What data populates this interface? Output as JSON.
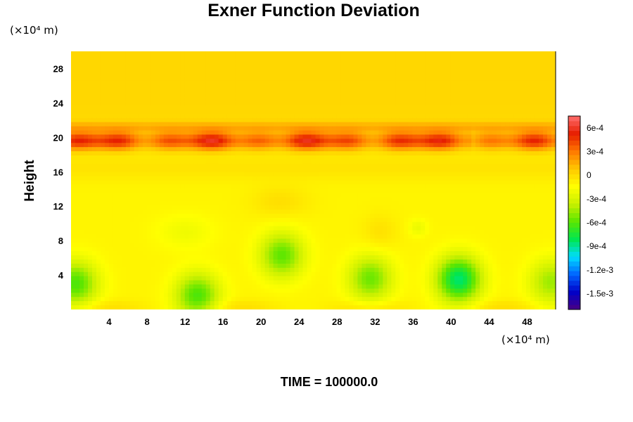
{
  "chart_data": {
    "type": "heatmap",
    "title": "Exner Function Deviation",
    "ylabel": "Height",
    "xlabel": "",
    "y_unit": "(×10⁴ m)",
    "x_unit": "(×10⁴ m)",
    "x_ticks": [
      "4",
      "8",
      "12",
      "16",
      "20",
      "24",
      "28",
      "32",
      "36",
      "40",
      "44",
      "48"
    ],
    "y_ticks": [
      "4",
      "8",
      "12",
      "16",
      "20",
      "24",
      "28"
    ],
    "xlim": [
      0,
      51
    ],
    "ylim": [
      0,
      30
    ],
    "colorbar": {
      "tick_labels": [
        "6e-4",
        "3e-4",
        "0",
        "-3e-4",
        "-6e-4",
        "-9e-4",
        "-1.2e-3",
        "-1.5e-3"
      ],
      "tick_values": [
        0.0006,
        0.0003,
        0,
        -0.0003,
        -0.0006,
        -0.0009,
        -0.0012,
        -0.0015
      ],
      "range": [
        -0.0017,
        0.00075
      ],
      "placement": "right",
      "colors": [
        "#4b0082",
        "#0000c8",
        "#0064ff",
        "#00dcff",
        "#00e650",
        "#5ae600",
        "#c8f000",
        "#ffff00",
        "#ffc800",
        "#ff7800",
        "#e61e00",
        "#ff6e6e"
      ]
    },
    "field": {
      "background_value": -0.0001,
      "upper_value": 2e-05,
      "band": {
        "y_center": 19.6,
        "peak_value": 0.0005
      },
      "minima": [
        {
          "x": 0.5,
          "y": 3.0,
          "value": -0.00062
        },
        {
          "x": 13.3,
          "y": 1.6,
          "value": -0.00062
        },
        {
          "x": 22.2,
          "y": 6.3,
          "value": -0.00058
        },
        {
          "x": 31.5,
          "y": 3.6,
          "value": -0.00055
        },
        {
          "x": 40.8,
          "y": 3.5,
          "value": -0.00085
        },
        {
          "x": 50.5,
          "y": 3.2,
          "value": -0.00045
        }
      ]
    }
  },
  "footer": {
    "time_label": "TIME = 100000.0"
  }
}
